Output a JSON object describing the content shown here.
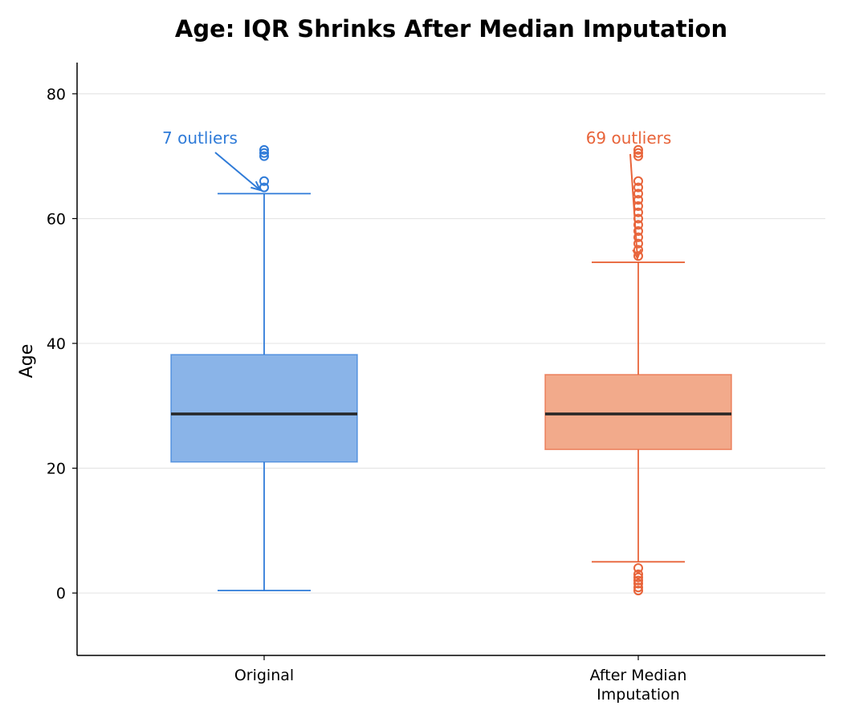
{
  "chart_data": {
    "type": "box",
    "title": "Age: IQR Shrinks After Median Imputation",
    "xlabel": "",
    "ylabel": "Age",
    "ylim": [
      -10,
      85
    ],
    "yticks": [
      0,
      20,
      40,
      60,
      80
    ],
    "grid": "y",
    "categories": [
      "Original",
      "After Median\nImputation"
    ],
    "boxes": [
      {
        "name": "Original",
        "q1": 21,
        "median": 28.7,
        "q3": 38.2,
        "whisker_low": 0.4,
        "whisker_high": 64,
        "outliers": [
          65,
          66,
          70,
          70.5,
          71
        ],
        "annotation": "7 outliers",
        "color": "#2f7bd8",
        "fill": "#8ab4e8"
      },
      {
        "name": "After Median Imputation",
        "q1": 23,
        "median": 28.7,
        "q3": 35,
        "whisker_low": 5,
        "whisker_high": 53,
        "outliers": [
          0.4,
          0.9,
          1.5,
          2,
          2.5,
          3,
          4,
          54,
          55,
          56,
          57,
          58,
          59,
          60,
          61,
          62,
          63,
          64,
          65,
          66,
          70,
          70.5,
          71
        ],
        "annotation": "69 outliers",
        "color": "#e8643a",
        "fill": "#f2aa8b"
      }
    ],
    "median_color": "#262626"
  }
}
